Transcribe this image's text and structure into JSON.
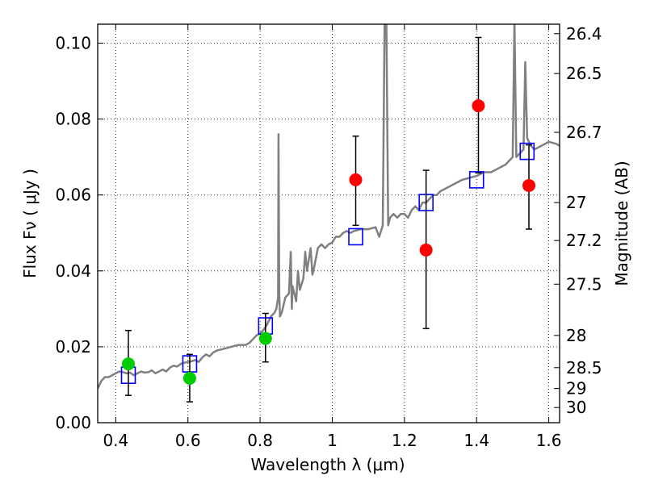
{
  "chart_data": {
    "type": "scatter",
    "xlabel": "Wavelength  λ (μm)",
    "ylabel": "Flux  Fν  ( μJy )",
    "ylabel_right": "Magnitude (AB)",
    "xlim": [
      0.35,
      1.63
    ],
    "ylim": [
      0.0,
      0.105
    ],
    "grid": true,
    "x_ticks": [
      {
        "value": 0.4,
        "label": "0.4"
      },
      {
        "value": 0.6,
        "label": "0.6"
      },
      {
        "value": 0.8,
        "label": "0.8"
      },
      {
        "value": 1.0,
        "label": "1"
      },
      {
        "value": 1.2,
        "label": "1.2"
      },
      {
        "value": 1.4,
        "label": "1.4"
      },
      {
        "value": 1.6,
        "label": "1.6"
      }
    ],
    "y_ticks": [
      {
        "value": 0.0,
        "label": "0.00"
      },
      {
        "value": 0.02,
        "label": "0.02"
      },
      {
        "value": 0.04,
        "label": "0.04"
      },
      {
        "value": 0.06,
        "label": "0.06"
      },
      {
        "value": 0.08,
        "label": "0.08"
      },
      {
        "value": 0.1,
        "label": "0.10"
      }
    ],
    "right_ticks": [
      {
        "flux": 0.1025,
        "label": "26.4"
      },
      {
        "flux": 0.092,
        "label": "26.5"
      },
      {
        "flux": 0.0765,
        "label": "26.7"
      },
      {
        "flux": 0.058,
        "label": "27"
      },
      {
        "flux": 0.048,
        "label": "27.2"
      },
      {
        "flux": 0.0365,
        "label": "27.5"
      },
      {
        "flux": 0.023,
        "label": "28"
      },
      {
        "flux": 0.0145,
        "label": "28.5"
      },
      {
        "flux": 0.009,
        "label": "29"
      },
      {
        "flux": 0.004,
        "label": "30"
      }
    ],
    "series": [
      {
        "kind": "line",
        "color": "#808080",
        "points": [
          [
            0.35,
            0.009
          ],
          [
            0.36,
            0.011
          ],
          [
            0.37,
            0.012
          ],
          [
            0.38,
            0.012
          ],
          [
            0.39,
            0.0125
          ],
          [
            0.4,
            0.013
          ],
          [
            0.41,
            0.0135
          ],
          [
            0.42,
            0.0133
          ],
          [
            0.43,
            0.013
          ],
          [
            0.44,
            0.0132
          ],
          [
            0.45,
            0.0125
          ],
          [
            0.46,
            0.013
          ],
          [
            0.47,
            0.0135
          ],
          [
            0.48,
            0.0132
          ],
          [
            0.49,
            0.0133
          ],
          [
            0.5,
            0.0138
          ],
          [
            0.51,
            0.013
          ],
          [
            0.52,
            0.0135
          ],
          [
            0.53,
            0.014
          ],
          [
            0.54,
            0.0135
          ],
          [
            0.55,
            0.0145
          ],
          [
            0.56,
            0.015
          ],
          [
            0.57,
            0.0148
          ],
          [
            0.58,
            0.0155
          ],
          [
            0.59,
            0.0158
          ],
          [
            0.6,
            0.016
          ],
          [
            0.61,
            0.0162
          ],
          [
            0.62,
            0.0165
          ],
          [
            0.63,
            0.016
          ],
          [
            0.64,
            0.0172
          ],
          [
            0.65,
            0.018
          ],
          [
            0.66,
            0.0175
          ],
          [
            0.67,
            0.0185
          ],
          [
            0.68,
            0.019
          ],
          [
            0.7,
            0.0195
          ],
          [
            0.72,
            0.02
          ],
          [
            0.74,
            0.0205
          ],
          [
            0.76,
            0.0205
          ],
          [
            0.77,
            0.021
          ],
          [
            0.78,
            0.022
          ],
          [
            0.79,
            0.023
          ],
          [
            0.8,
            0.0235
          ],
          [
            0.81,
            0.0245
          ],
          [
            0.82,
            0.026
          ],
          [
            0.83,
            0.028
          ],
          [
            0.84,
            0.029
          ],
          [
            0.845,
            0.03
          ],
          [
            0.85,
            0.033
          ],
          [
            0.851,
            0.076
          ],
          [
            0.853,
            0.034
          ],
          [
            0.855,
            0.028
          ],
          [
            0.86,
            0.029
          ],
          [
            0.87,
            0.033
          ],
          [
            0.88,
            0.034
          ],
          [
            0.885,
            0.045
          ],
          [
            0.888,
            0.03
          ],
          [
            0.89,
            0.036
          ],
          [
            0.9,
            0.032
          ],
          [
            0.905,
            0.04
          ],
          [
            0.91,
            0.035
          ],
          [
            0.92,
            0.038
          ],
          [
            0.925,
            0.045
          ],
          [
            0.93,
            0.04
          ],
          [
            0.94,
            0.046
          ],
          [
            0.945,
            0.039
          ],
          [
            0.95,
            0.041
          ],
          [
            0.96,
            0.046
          ],
          [
            0.97,
            0.047
          ],
          [
            0.98,
            0.046
          ],
          [
            0.99,
            0.047
          ],
          [
            1.0,
            0.0475
          ],
          [
            1.01,
            0.049
          ],
          [
            1.02,
            0.049
          ],
          [
            1.03,
            0.05
          ],
          [
            1.04,
            0.0505
          ],
          [
            1.05,
            0.05
          ],
          [
            1.06,
            0.0505
          ],
          [
            1.08,
            0.051
          ],
          [
            1.1,
            0.051
          ],
          [
            1.12,
            0.0515
          ],
          [
            1.13,
            0.049
          ],
          [
            1.14,
            0.052
          ],
          [
            1.145,
            0.106
          ],
          [
            1.15,
            0.106
          ],
          [
            1.155,
            0.052
          ],
          [
            1.16,
            0.054
          ],
          [
            1.17,
            0.055
          ],
          [
            1.18,
            0.054
          ],
          [
            1.19,
            0.055
          ],
          [
            1.2,
            0.055
          ],
          [
            1.21,
            0.054
          ],
          [
            1.22,
            0.056
          ],
          [
            1.23,
            0.057
          ],
          [
            1.24,
            0.056
          ],
          [
            1.25,
            0.058
          ],
          [
            1.26,
            0.058
          ],
          [
            1.27,
            0.059
          ],
          [
            1.28,
            0.06
          ],
          [
            1.29,
            0.06
          ],
          [
            1.3,
            0.061
          ],
          [
            1.32,
            0.062
          ],
          [
            1.34,
            0.063
          ],
          [
            1.36,
            0.064
          ],
          [
            1.38,
            0.0645
          ],
          [
            1.4,
            0.065
          ],
          [
            1.42,
            0.066
          ],
          [
            1.44,
            0.066
          ],
          [
            1.46,
            0.067
          ],
          [
            1.48,
            0.068
          ],
          [
            1.49,
            0.069
          ],
          [
            1.5,
            0.07
          ],
          [
            1.505,
            0.106
          ],
          [
            1.51,
            0.07
          ],
          [
            1.52,
            0.071
          ],
          [
            1.53,
            0.072
          ],
          [
            1.535,
            0.095
          ],
          [
            1.54,
            0.075
          ],
          [
            1.55,
            0.073
          ],
          [
            1.56,
            0.072
          ],
          [
            1.58,
            0.073
          ],
          [
            1.6,
            0.074
          ],
          [
            1.62,
            0.0735
          ],
          [
            1.63,
            0.073
          ]
        ]
      },
      {
        "kind": "markers-open-square",
        "color": "#0000ff",
        "points": [
          [
            0.435,
            0.0125
          ],
          [
            0.605,
            0.0155
          ],
          [
            0.815,
            0.0255
          ],
          [
            1.065,
            0.049
          ],
          [
            1.26,
            0.058
          ],
          [
            1.4,
            0.064
          ],
          [
            1.54,
            0.0715
          ]
        ]
      },
      {
        "kind": "markers-filled-circle",
        "color": "#00cc00",
        "points": [
          {
            "x": 0.435,
            "y": 0.0155,
            "lo": 0.0072,
            "hi": 0.0243
          },
          {
            "x": 0.605,
            "y": 0.0117,
            "lo": 0.0055,
            "hi": 0.018
          },
          {
            "x": 0.815,
            "y": 0.0222,
            "lo": 0.016,
            "hi": 0.0288
          }
        ]
      },
      {
        "kind": "markers-filled-circle",
        "color": "#ff0000",
        "points": [
          {
            "x": 1.065,
            "y": 0.064,
            "lo": 0.052,
            "hi": 0.0755
          },
          {
            "x": 1.26,
            "y": 0.0455,
            "lo": 0.0248,
            "hi": 0.0665
          },
          {
            "x": 1.405,
            "y": 0.0835,
            "lo": 0.0658,
            "hi": 0.1015
          },
          {
            "x": 1.545,
            "y": 0.0625,
            "lo": 0.051,
            "hi": 0.0732
          }
        ]
      }
    ]
  }
}
